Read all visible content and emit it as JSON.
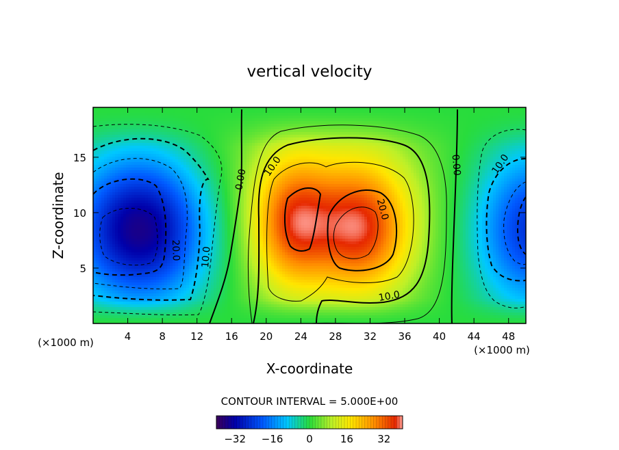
{
  "chart_data": {
    "type": "heatmap",
    "title": "vertical velocity",
    "xlabel": "X-coordinate",
    "ylabel": "Z-coordinate",
    "x_unit_left": "(×1000 m)",
    "x_unit_right": "(×1000 m)",
    "xlim": [
      0,
      50
    ],
    "ylim": [
      0,
      19.5
    ],
    "x_ticks": [
      4,
      8,
      12,
      16,
      20,
      24,
      28,
      32,
      36,
      40,
      44,
      48
    ],
    "x_tick_labels": [
      "4",
      "8",
      "12",
      "16",
      "20",
      "24",
      "28",
      "32",
      "36",
      "40",
      "44",
      "48"
    ],
    "y_ticks": [
      5,
      10,
      15
    ],
    "y_tick_labels": [
      "5",
      "10",
      "15"
    ],
    "contour_interval_text": "CONTOUR INTERVAL = 5.000E+00",
    "colorbar": {
      "range": [
        -40,
        40
      ],
      "ticks": [
        -32,
        -16,
        0,
        16,
        32
      ],
      "tick_labels": [
        "−32",
        "−16",
        "0",
        "16",
        "32"
      ]
    },
    "contour_labels": [
      {
        "text": "0.00",
        "x": 17.0,
        "z": 13.0,
        "angle": -80
      },
      {
        "text": "10.0",
        "x": 20.7,
        "z": 14.2,
        "angle": -55
      },
      {
        "text": "0.00",
        "x": 42.0,
        "z": 14.3,
        "angle": 85
      },
      {
        "text": "10.0",
        "x": 47.0,
        "z": 14.4,
        "angle": -55
      },
      {
        "text": "20.0",
        "x": 33.5,
        "z": 10.3,
        "angle": 75
      },
      {
        "text": "20.0",
        "x": 9.6,
        "z": 6.6,
        "angle": 88
      },
      {
        "text": "10.0",
        "x": 13.0,
        "z": 6.0,
        "angle": -85
      },
      {
        "text": "10.0",
        "x": 34.2,
        "z": 2.5,
        "angle": -10
      }
    ],
    "features": [
      {
        "kind": "minimum",
        "x": 5.5,
        "z": 8.5,
        "value": -36
      },
      {
        "kind": "maximum",
        "x": 23.0,
        "z": 9.0,
        "value": 30
      },
      {
        "kind": "maximum",
        "x": 31.0,
        "z": 8.5,
        "value": 32
      },
      {
        "kind": "minimum",
        "x": 50.0,
        "z": 8.5,
        "value": -20
      }
    ]
  }
}
